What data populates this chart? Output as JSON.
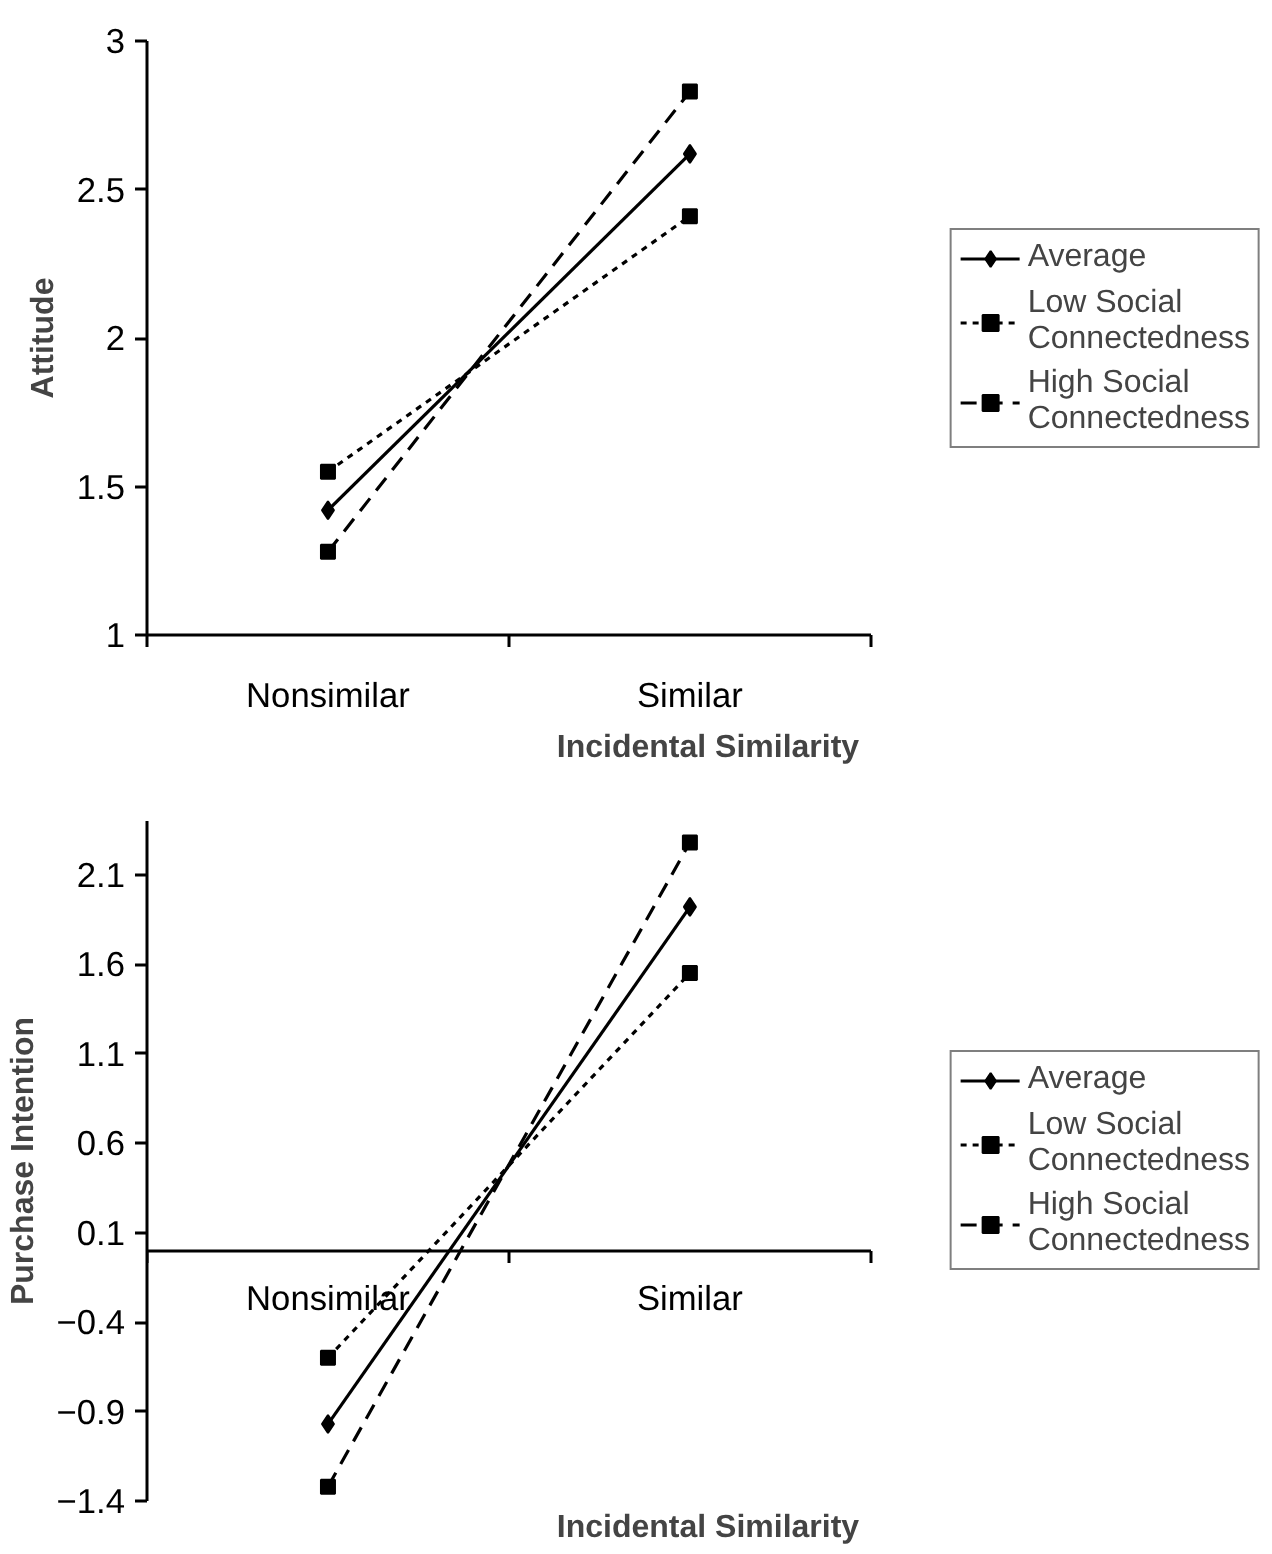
{
  "chart_data": [
    {
      "type": "line",
      "categories": [
        "Nonsimilar",
        "Similar"
      ],
      "xlabel": "Incidental Similarity",
      "ylabel": "Attitude",
      "ylim": [
        1,
        3
      ],
      "yticks": [
        1,
        1.5,
        2,
        2.5,
        3
      ],
      "grid": false,
      "legend": "right",
      "series": [
        {
          "name": "Average",
          "color": "#000000",
          "values": [
            1.42,
            2.62
          ],
          "marker": "diamond",
          "line_style": "solid"
        },
        {
          "name": "Low Social Connectedness",
          "color": "#000000",
          "values": [
            1.55,
            2.41
          ],
          "marker": "square",
          "line_style": "dotted"
        },
        {
          "name": "High Social Connectedness",
          "color": "#000000",
          "values": [
            1.28,
            2.83
          ],
          "marker": "square",
          "line_style": "dashed"
        }
      ]
    },
    {
      "type": "line",
      "categories": [
        "Nonsimilar",
        "Similar"
      ],
      "xlabel": "Incidental Similarity",
      "ylabel": "Purchase Intention",
      "ylim": [
        -1.4,
        2.4
      ],
      "yticks": [
        -1.4,
        -0.9,
        -0.4,
        0.1,
        0.6,
        1.1,
        1.6,
        2.1
      ],
      "grid": false,
      "legend": "right",
      "series": [
        {
          "name": "Average",
          "color": "#000000",
          "values": [
            -0.97,
            1.92
          ],
          "marker": "diamond",
          "line_style": "solid"
        },
        {
          "name": "Low Social Connectedness",
          "color": "#000000",
          "values": [
            -0.6,
            1.55
          ],
          "marker": "square",
          "line_style": "dotted"
        },
        {
          "name": "High Social Connectedness",
          "color": "#000000",
          "values": [
            -1.32,
            2.28
          ],
          "marker": "square",
          "line_style": "dashed"
        }
      ]
    }
  ]
}
